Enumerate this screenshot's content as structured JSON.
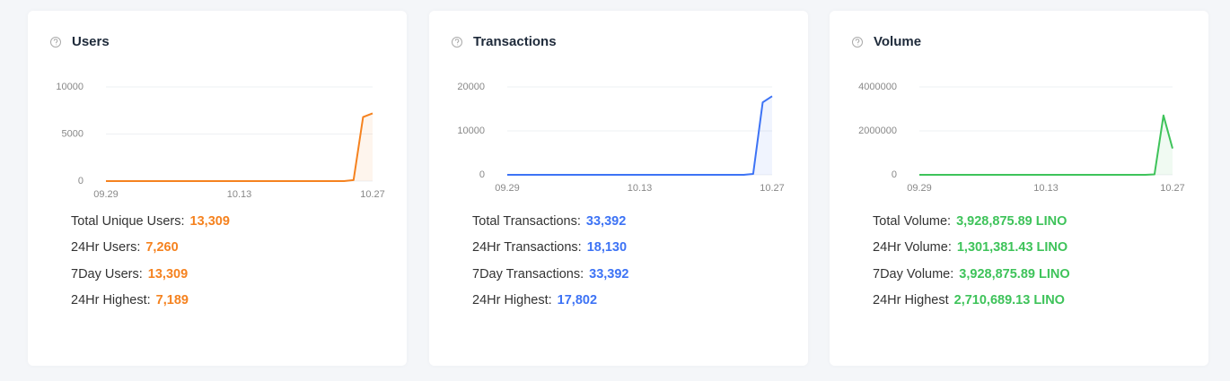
{
  "chart_data": [
    {
      "type": "line",
      "title": "Users",
      "color": "#f5821f",
      "categories": [
        "09.29",
        null,
        null,
        null,
        null,
        null,
        null,
        null,
        null,
        null,
        null,
        null,
        null,
        null,
        "10.13",
        null,
        null,
        null,
        null,
        null,
        null,
        null,
        null,
        null,
        null,
        null,
        null,
        null,
        "10.27"
      ],
      "values": [
        0,
        0,
        0,
        0,
        0,
        0,
        0,
        0,
        0,
        0,
        0,
        0,
        0,
        0,
        0,
        0,
        0,
        0,
        0,
        0,
        0,
        0,
        0,
        0,
        0,
        0,
        100,
        6800,
        7200
      ],
      "ylim": [
        0,
        10000
      ],
      "yticks": [
        0,
        5000,
        10000
      ],
      "grid": true,
      "stats": [
        {
          "label": "Total Unique Users:",
          "value": "13,309"
        },
        {
          "label": "24Hr Users:",
          "value": "7,260"
        },
        {
          "label": "7Day Users:",
          "value": "13,309"
        },
        {
          "label": "24Hr Highest:",
          "value": "7,189"
        }
      ]
    },
    {
      "type": "line",
      "title": "Transactions",
      "color": "#3d73f5",
      "categories": [
        "09.29",
        null,
        null,
        null,
        null,
        null,
        null,
        null,
        null,
        null,
        null,
        null,
        null,
        null,
        "10.13",
        null,
        null,
        null,
        null,
        null,
        null,
        null,
        null,
        null,
        null,
        null,
        null,
        null,
        "10.27"
      ],
      "values": [
        0,
        0,
        0,
        0,
        0,
        0,
        0,
        0,
        0,
        0,
        0,
        0,
        0,
        0,
        0,
        0,
        0,
        0,
        0,
        0,
        0,
        0,
        0,
        0,
        0,
        0,
        200,
        16500,
        17900
      ],
      "ylim": [
        0,
        20000
      ],
      "yticks": [
        0,
        10000,
        20000
      ],
      "grid": true,
      "stats": [
        {
          "label": "Total Transactions:",
          "value": "33,392"
        },
        {
          "label": "24Hr Transactions:",
          "value": "18,130"
        },
        {
          "label": "7Day Transactions:",
          "value": "33,392"
        },
        {
          "label": "24Hr Highest:",
          "value": "17,802"
        }
      ]
    },
    {
      "type": "line",
      "title": "Volume",
      "color": "#3ec35a",
      "categories": [
        "09.29",
        null,
        null,
        null,
        null,
        null,
        null,
        null,
        null,
        null,
        null,
        null,
        null,
        null,
        "10.13",
        null,
        null,
        null,
        null,
        null,
        null,
        null,
        null,
        null,
        null,
        null,
        null,
        null,
        "10.27"
      ],
      "values": [
        0,
        0,
        0,
        0,
        0,
        0,
        0,
        0,
        0,
        0,
        0,
        0,
        0,
        0,
        0,
        0,
        0,
        0,
        0,
        0,
        0,
        0,
        0,
        0,
        0,
        0,
        20000,
        2700000,
        1200000
      ],
      "ylim": [
        0,
        4000000
      ],
      "yticks": [
        0,
        2000000,
        4000000
      ],
      "grid": true,
      "stats": [
        {
          "label": "Total Volume:",
          "value": "3,928,875.89 LINO"
        },
        {
          "label": "24Hr Volume:",
          "value": "1,301,381.43 LINO"
        },
        {
          "label": "7Day Volume:",
          "value": "3,928,875.89 LINO"
        },
        {
          "label": "24Hr Highest",
          "value": "2,710,689.13 LINO"
        }
      ]
    }
  ]
}
